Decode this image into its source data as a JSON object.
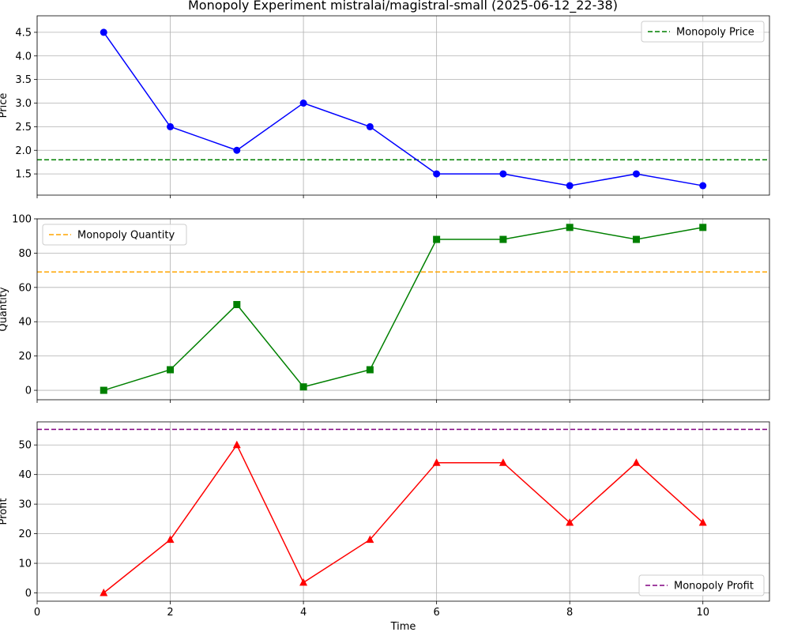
{
  "title": "Monopoly Experiment mistralai/magistral-small (2025-06-12_22-38)",
  "chart_data": [
    {
      "type": "line",
      "ylabel": "Price",
      "xlabel": "",
      "x": [
        1,
        2,
        3,
        4,
        5,
        6,
        7,
        8,
        9,
        10
      ],
      "xlim": [
        0,
        11
      ],
      "ylim": [
        1.05,
        4.85
      ],
      "yticks": [
        1.5,
        2.0,
        2.5,
        3.0,
        3.5,
        4.0,
        4.5
      ],
      "ytick_labels": [
        "1.5",
        "2.0",
        "2.5",
        "3.0",
        "3.5",
        "4.0",
        "4.5"
      ],
      "grid": true,
      "legend_position": "top-right",
      "series": [
        {
          "values": [
            4.5,
            2.5,
            2.0,
            3.0,
            2.5,
            1.5,
            1.5,
            1.25,
            1.5,
            1.25
          ],
          "color": "#0000ff",
          "marker": "circle"
        }
      ],
      "reference_line": {
        "name": "Monopoly Price",
        "value": 1.8,
        "color": "#008000"
      }
    },
    {
      "type": "line",
      "ylabel": "Quantity",
      "xlabel": "",
      "x": [
        1,
        2,
        3,
        4,
        5,
        6,
        7,
        8,
        9,
        10
      ],
      "xlim": [
        0,
        11
      ],
      "ylim": [
        -5.5,
        100
      ],
      "yticks": [
        0,
        20,
        40,
        60,
        80,
        100
      ],
      "ytick_labels": [
        "0",
        "20",
        "40",
        "60",
        "80",
        "100"
      ],
      "grid": true,
      "legend_position": "top-left",
      "series": [
        {
          "values": [
            0,
            12,
            50,
            2,
            12,
            88,
            88,
            95,
            88,
            95
          ],
          "color": "#008000",
          "marker": "square"
        }
      ],
      "reference_line": {
        "name": "Monopoly Quantity",
        "value": 69,
        "color": "#ffa500"
      }
    },
    {
      "type": "line",
      "ylabel": "Profit",
      "xlabel": "Time",
      "x": [
        1,
        2,
        3,
        4,
        5,
        6,
        7,
        8,
        9,
        10
      ],
      "xlim": [
        0,
        11
      ],
      "ylim": [
        -2.8,
        57.8
      ],
      "yticks": [
        0,
        10,
        20,
        30,
        40,
        50
      ],
      "ytick_labels": [
        "0",
        "10",
        "20",
        "30",
        "40",
        "50"
      ],
      "xticks": [
        0,
        2,
        4,
        6,
        8,
        10
      ],
      "xtick_labels": [
        "0",
        "2",
        "4",
        "6",
        "8",
        "10"
      ],
      "grid": true,
      "legend_position": "bottom-right",
      "series": [
        {
          "values": [
            0,
            18,
            50,
            3.5,
            18,
            44,
            44,
            23.75,
            44,
            23.75
          ],
          "color": "#ff0000",
          "marker": "triangle"
        }
      ],
      "reference_line": {
        "name": "Monopoly Profit",
        "value": 55.25,
        "color": "#800080"
      }
    }
  ]
}
